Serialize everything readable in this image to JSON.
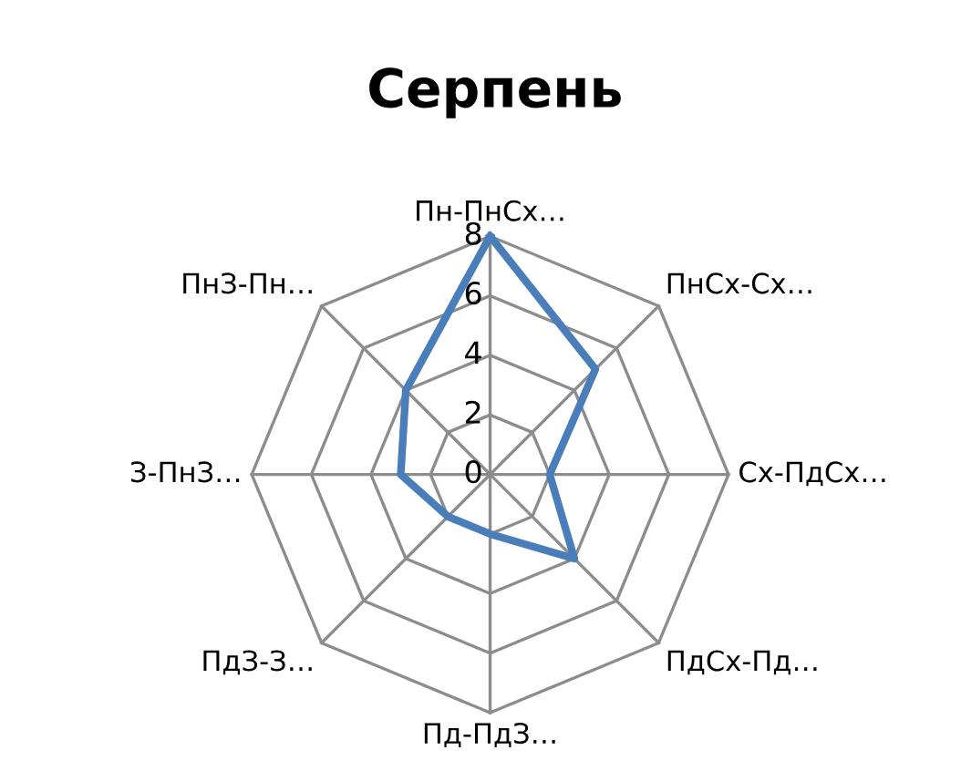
{
  "chart_data": {
    "type": "radar",
    "title": "Серпень",
    "categories": [
      "Пн-ПнСх…",
      "ПнСх-Сх…",
      "Сх-ПдСх…",
      "ПдСх-Пд…",
      "Пд-ПдЗ…",
      "ПдЗ-З…",
      "З-ПнЗ…",
      "ПнЗ-Пн…"
    ],
    "series": [
      {
        "color": "#4a7ebb",
        "values": [
          8,
          5,
          2,
          4,
          2,
          2,
          3,
          4
        ]
      }
    ],
    "ylim": [
      0,
      8
    ],
    "yticks": [
      0,
      2,
      4,
      6,
      8
    ],
    "grid": true,
    "legend": false,
    "marker": "none"
  }
}
